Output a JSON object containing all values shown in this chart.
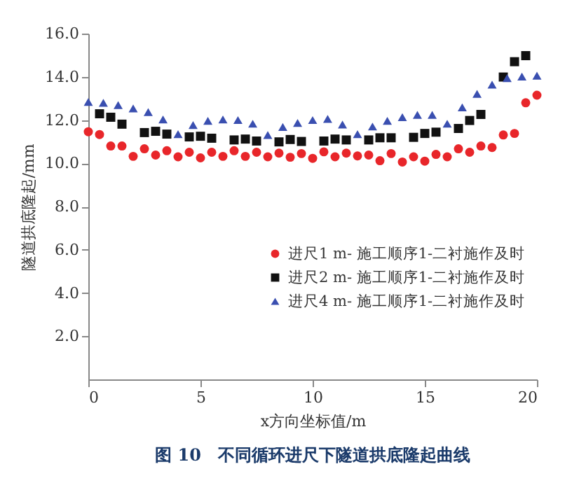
{
  "chart_data": {
    "type": "scatter",
    "title": "图 10　不同循环进尺下隧道拱底隆起曲线",
    "xlabel": "x方向坐标值/m",
    "ylabel": "隧道拱底隆起/mm",
    "xlim": [
      0,
      20
    ],
    "xticks": [
      0,
      5,
      10,
      15,
      20
    ],
    "ylim": [
      0,
      16
    ],
    "yticks": [
      {
        "value": 2,
        "label": "2.0"
      },
      {
        "value": 4,
        "label": "4.0"
      },
      {
        "value": 6,
        "label": "6.0"
      },
      {
        "value": 8,
        "label": "8.0"
      },
      {
        "value": 10,
        "label": "10.0"
      },
      {
        "value": 12,
        "label": "12.0"
      },
      {
        "value": 14,
        "label": "14.0"
      },
      {
        "value": 16,
        "label": "16.0"
      }
    ],
    "grid": false,
    "legend": "right",
    "series": [
      {
        "name": "进尺1 m- 施工顺序1-二衬施作及时",
        "color": "#e8262a",
        "marker": "circle",
        "x": [
          0,
          0.5,
          1,
          1.5,
          2,
          2.5,
          3,
          3.5,
          4,
          4.5,
          5,
          5.5,
          6,
          6.5,
          7,
          7.5,
          8,
          8.5,
          9,
          9.5,
          10,
          10.5,
          11,
          11.5,
          12,
          12.5,
          13,
          13.5,
          14,
          14.5,
          15,
          15.5,
          16,
          16.5,
          17,
          17.5,
          18,
          18.5,
          19,
          19.5,
          20
        ],
        "values": [
          11.46,
          11.33,
          10.8,
          10.8,
          10.32,
          10.67,
          10.38,
          10.58,
          10.3,
          10.51,
          10.25,
          10.51,
          10.32,
          10.58,
          10.32,
          10.51,
          10.3,
          10.47,
          10.28,
          10.45,
          10.23,
          10.53,
          10.3,
          10.47,
          10.34,
          10.38,
          10.12,
          10.45,
          10.06,
          10.3,
          10.1,
          10.41,
          10.3,
          10.67,
          10.51,
          10.8,
          10.73,
          11.31,
          11.38,
          12.8,
          13.15
        ]
      },
      {
        "name": "进尺2 m- 施工顺序1-二衬施作及时",
        "color": "#111111",
        "marker": "square",
        "x": [
          0.5,
          1,
          1.5,
          2.5,
          3,
          3.5,
          4.5,
          5,
          5.5,
          6.5,
          7,
          7.5,
          8.5,
          9,
          9.5,
          10.5,
          11,
          11.5,
          12.5,
          13,
          13.5,
          14.5,
          15,
          15.5,
          16.5,
          17,
          17.5,
          18.5,
          19,
          19.5
        ],
        "values": [
          12.29,
          12.13,
          11.81,
          11.42,
          11.48,
          11.35,
          11.22,
          11.25,
          11.16,
          11.08,
          11.12,
          11.03,
          10.99,
          11.1,
          11.01,
          11.03,
          11.12,
          11.08,
          11.08,
          11.18,
          11.18,
          11.2,
          11.38,
          11.44,
          11.61,
          11.98,
          12.26,
          13.99,
          14.7,
          14.98
        ]
      },
      {
        "name": "进尺4 m- 施工顺序1-二衬施作及时",
        "color": "#3a4fb0",
        "marker": "triangle",
        "x": [
          0,
          0.67,
          1.33,
          2,
          2.67,
          3.33,
          4,
          4.67,
          5.33,
          6,
          6.67,
          7.33,
          8,
          8.67,
          9.33,
          10,
          10.67,
          11.33,
          12,
          12.67,
          13.33,
          14,
          14.67,
          15.33,
          16,
          16.67,
          17.33,
          18,
          18.67,
          19.33,
          20
        ],
        "values": [
          12.84,
          12.8,
          12.69,
          12.54,
          12.37,
          12.03,
          11.35,
          11.77,
          11.96,
          12.03,
          12.0,
          11.83,
          11.31,
          11.68,
          11.87,
          12.0,
          12.05,
          11.79,
          11.35,
          11.7,
          11.96,
          12.13,
          12.24,
          12.24,
          11.83,
          12.59,
          13.21,
          13.64,
          13.94,
          14.01,
          14.05
        ]
      }
    ]
  }
}
